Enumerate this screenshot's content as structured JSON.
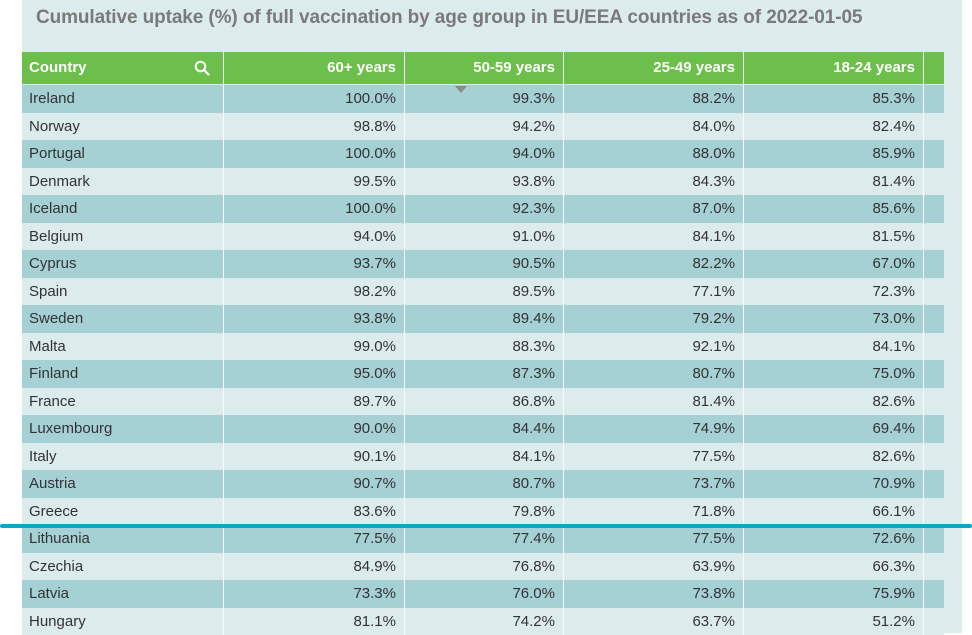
{
  "chart_data": {
    "type": "table",
    "title": "Cumulative uptake (%) of full vaccination by age group in EU/EEA countries as of 2022-01-05",
    "columns": [
      "Country",
      "60+ years",
      "50-59 years",
      "25-49 years",
      "18-24 years"
    ],
    "sort_column": "50-59 years",
    "sort_direction": "descending",
    "rows": [
      [
        "Ireland",
        "100.0%",
        "99.3%",
        "88.2%",
        "85.3%"
      ],
      [
        "Norway",
        "98.8%",
        "94.2%",
        "84.0%",
        "82.4%"
      ],
      [
        "Portugal",
        "100.0%",
        "94.0%",
        "88.0%",
        "85.9%"
      ],
      [
        "Denmark",
        "99.5%",
        "93.8%",
        "84.3%",
        "81.4%"
      ],
      [
        "Iceland",
        "100.0%",
        "92.3%",
        "87.0%",
        "85.6%"
      ],
      [
        "Belgium",
        "94.0%",
        "91.0%",
        "84.1%",
        "81.5%"
      ],
      [
        "Cyprus",
        "93.7%",
        "90.5%",
        "82.2%",
        "67.0%"
      ],
      [
        "Spain",
        "98.2%",
        "89.5%",
        "77.1%",
        "72.3%"
      ],
      [
        "Sweden",
        "93.8%",
        "89.4%",
        "79.2%",
        "73.0%"
      ],
      [
        "Malta",
        "99.0%",
        "88.3%",
        "92.1%",
        "84.1%"
      ],
      [
        "Finland",
        "95.0%",
        "87.3%",
        "80.7%",
        "75.0%"
      ],
      [
        "France",
        "89.7%",
        "86.8%",
        "81.4%",
        "82.6%"
      ],
      [
        "Luxembourg",
        "90.0%",
        "84.4%",
        "74.9%",
        "69.4%"
      ],
      [
        "Italy",
        "90.1%",
        "84.1%",
        "77.5%",
        "82.6%"
      ],
      [
        "Austria",
        "90.7%",
        "80.7%",
        "73.7%",
        "70.9%"
      ],
      [
        "Greece",
        "83.6%",
        "79.8%",
        "71.8%",
        "66.1%"
      ],
      [
        "Lithuania",
        "77.5%",
        "77.4%",
        "77.5%",
        "72.6%"
      ],
      [
        "Czechia",
        "84.9%",
        "76.8%",
        "63.9%",
        "66.3%"
      ],
      [
        "Latvia",
        "73.3%",
        "76.0%",
        "73.8%",
        "75.9%"
      ],
      [
        "Hungary",
        "81.1%",
        "74.2%",
        "63.7%",
        "51.2%"
      ]
    ]
  },
  "icons": {
    "search": "search-icon",
    "sort": "sort-descending-icon"
  },
  "colors": {
    "header_bg": "#6cbf4a",
    "row_dark": "#a5d0d4",
    "row_light": "#dcebeb",
    "title_text": "#7a7a7a",
    "highlight_line": "#0ea6c6"
  }
}
